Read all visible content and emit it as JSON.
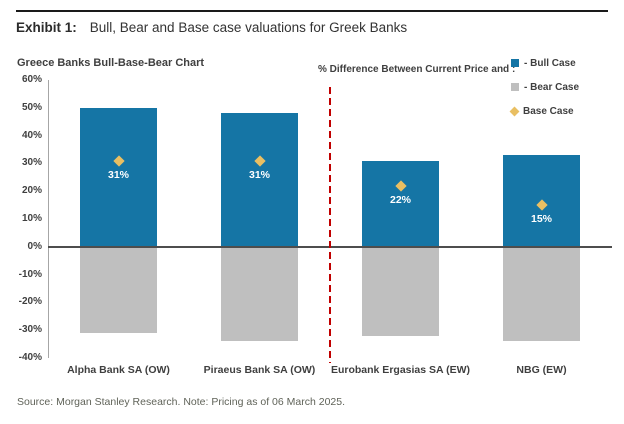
{
  "header": {
    "exhibit_label": "Exhibit 1:",
    "title": "Bull, Bear and Base case valuations for Greek Banks"
  },
  "source_note": "Source: Morgan Stanley Research. Note: Pricing as of 06 March 2025.",
  "chart_data": {
    "type": "bar",
    "title": "Greece Banks Bull-Base-Bear Chart",
    "annotation": "% Difference Between Current Price and :",
    "categories": [
      "Alpha Bank SA (OW)",
      "Piraeus Bank SA (OW)",
      "Eurobank Ergasias SA (EW)",
      "NBG (EW)"
    ],
    "series": [
      {
        "name": "Bull Case",
        "legend_label": "- Bull Case",
        "marker": "square",
        "color": "#1575a5",
        "values": [
          50,
          48,
          31,
          33
        ]
      },
      {
        "name": "Bear Case",
        "legend_label": "- Bear Case",
        "marker": "square",
        "color": "#bfbfbf",
        "values": [
          -31,
          -34,
          -32,
          -34
        ]
      },
      {
        "name": "Base Case",
        "legend_label": "Base Case",
        "marker": "diamond",
        "color": "#e9bf62",
        "values": [
          31,
          31,
          22,
          15
        ],
        "data_labels": [
          "31%",
          "31%",
          "22%",
          "15%"
        ]
      }
    ],
    "ylim": [
      -40,
      60
    ],
    "y_ticks": [
      {
        "v": 60,
        "label": "60%"
      },
      {
        "v": 50,
        "label": "50%"
      },
      {
        "v": 40,
        "label": "40%"
      },
      {
        "v": 30,
        "label": "30%"
      },
      {
        "v": 20,
        "label": "20%"
      },
      {
        "v": 10,
        "label": "10%"
      },
      {
        "v": 0,
        "label": "0%"
      },
      {
        "v": -10,
        "label": "-10%"
      },
      {
        "v": -20,
        "label": "-20%"
      },
      {
        "v": -30,
        "label": "-30%"
      },
      {
        "v": -40,
        "label": "-40%"
      }
    ],
    "grid": false,
    "legend_position": "top-right",
    "separator": {
      "style": "dashed",
      "color": "#c00000",
      "after_category_index": 1
    },
    "colors": {
      "bull": "#1575a5",
      "bear": "#bfbfbf",
      "base": "#e9bf62",
      "separator": "#c00000",
      "zero_line": "#4d4d4d"
    }
  }
}
